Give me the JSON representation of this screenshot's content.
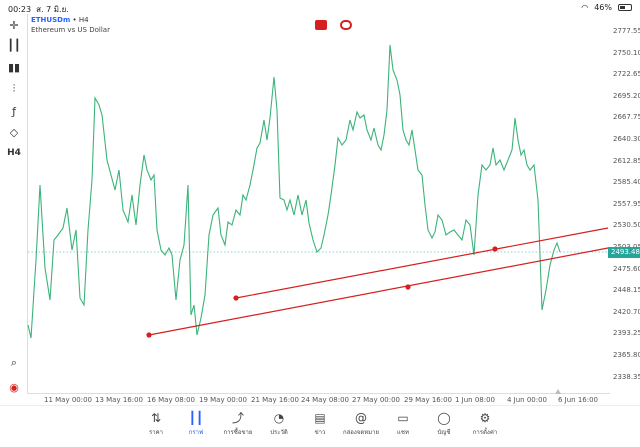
{
  "status_bar": {
    "time": "00:23",
    "date": "ส. 7 มิ.ย.",
    "battery": "46%"
  },
  "chart": {
    "symbol": "ETHUSDm",
    "separator": "•",
    "timeframe": "H4",
    "description": "Ethereum vs US Dollar",
    "current_price": "2493.48",
    "price_axis": [
      "2777.55",
      "2750.10",
      "2722.65",
      "2695.20",
      "2667.75",
      "2640.30",
      "2612.85",
      "2585.40",
      "2557.95",
      "2530.50",
      "2503.05",
      "2475.60",
      "2448.15",
      "2420.70",
      "2393.25",
      "2365.80",
      "2338.35"
    ],
    "date_axis": [
      "11 May 00:00",
      "13 May 16:00",
      "16 May 08:00",
      "19 May 00:00",
      "21 May 16:00",
      "24 May 08:00",
      "27 May 00:00",
      "29 May 16:00",
      "1 Jun 08:00",
      "4 Jun 00:00",
      "6 Jun 16:00"
    ],
    "line_color": "#3cb37a",
    "trendline_color": "#d61f1f",
    "current_price_color": "#26a69a"
  },
  "toolbar": {
    "timeframe_label": "H4"
  },
  "nav": [
    {
      "label": "ราคา",
      "icon": "quotes-icon"
    },
    {
      "label": "กราฟ",
      "icon": "chart-icon"
    },
    {
      "label": "การซื้อขาย",
      "icon": "trade-icon"
    },
    {
      "label": "ประวัติ",
      "icon": "history-icon"
    },
    {
      "label": "ข่าว",
      "icon": "news-icon"
    },
    {
      "label": "กล่องจดหมาย",
      "icon": "mailbox-icon"
    },
    {
      "label": "แชท",
      "icon": "chat-icon"
    },
    {
      "label": "บัญชี",
      "icon": "account-icon"
    },
    {
      "label": "การตั้งค่า",
      "icon": "settings-icon"
    }
  ]
}
